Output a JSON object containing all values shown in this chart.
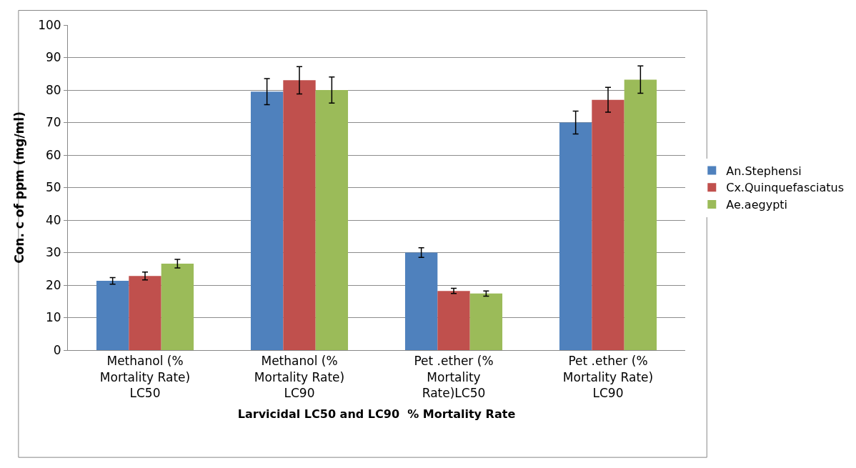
{
  "chart_data": {
    "type": "bar",
    "xlabel": "Larvicidal LC50 and LC90  % Mortality Rate",
    "ylabel": "Con. c of ppm (mg/ml)",
    "categories": [
      "Methanol (% Mortality Rate) LC50",
      "Methanol (% Mortality Rate) LC90",
      "Pet .ether (% Mortality Rate)LC50",
      "Pet .ether (% Mortality Rate) LC90"
    ],
    "series": [
      {
        "name": "An.Stephensi",
        "color": "#4f81bd",
        "values": [
          21.3,
          79.5,
          30,
          70
        ],
        "errors": [
          1,
          4,
          1.5,
          3.5
        ]
      },
      {
        "name": "Cx.Quinquefasciatus",
        "color": "#c0504d",
        "values": [
          22.8,
          83,
          18.2,
          77
        ],
        "errors": [
          1.2,
          4.2,
          0.8,
          3.8
        ]
      },
      {
        "name": "Ae.aegypti",
        "color": "#9bbb59",
        "values": [
          26.6,
          80,
          17.4,
          83.2
        ],
        "errors": [
          1.3,
          4,
          0.8,
          4.2
        ]
      }
    ],
    "ylim": [
      0,
      100
    ],
    "yticks": [
      0,
      10,
      20,
      30,
      40,
      50,
      60,
      70,
      80,
      90,
      100
    ],
    "grid": "y",
    "legend": "right"
  }
}
